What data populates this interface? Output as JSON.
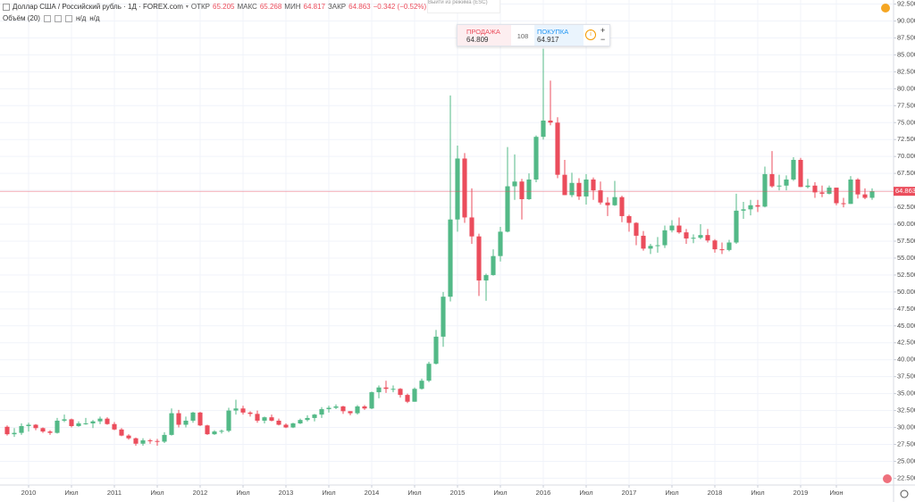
{
  "chart_data": {
    "type": "candlestick",
    "up_color": "#53b987",
    "down_color": "#eb4d5c",
    "x": [
      "2009-10",
      "2009-11",
      "2009-12",
      "2010-01",
      "2010-02",
      "2010-03",
      "2010-04",
      "2010-05",
      "2010-06",
      "2010-07",
      "2010-08",
      "2010-09",
      "2010-10",
      "2010-11",
      "2010-12",
      "2011-01",
      "2011-02",
      "2011-03",
      "2011-04",
      "2011-05",
      "2011-06",
      "2011-07",
      "2011-08",
      "2011-09",
      "2011-10",
      "2011-11",
      "2011-12",
      "2012-01",
      "2012-02",
      "2012-03",
      "2012-04",
      "2012-05",
      "2012-06",
      "2012-07",
      "2012-08",
      "2012-09",
      "2012-10",
      "2012-11",
      "2012-12",
      "2013-01",
      "2013-02",
      "2013-03",
      "2013-04",
      "2013-05",
      "2013-06",
      "2013-07",
      "2013-08",
      "2013-09",
      "2013-10",
      "2013-11",
      "2013-12",
      "2014-01",
      "2014-02",
      "2014-03",
      "2014-04",
      "2014-05",
      "2014-06",
      "2014-07",
      "2014-08",
      "2014-09",
      "2014-10",
      "2014-11",
      "2014-12",
      "2015-01",
      "2015-02",
      "2015-03",
      "2015-04",
      "2015-05",
      "2015-06",
      "2015-07",
      "2015-08",
      "2015-09",
      "2015-10",
      "2015-11",
      "2015-12",
      "2016-01",
      "2016-02",
      "2016-03",
      "2016-04",
      "2016-05",
      "2016-06",
      "2016-07",
      "2016-08",
      "2016-09",
      "2016-10",
      "2016-11",
      "2016-12",
      "2017-01",
      "2017-02",
      "2017-03",
      "2017-04",
      "2017-05",
      "2017-06",
      "2017-07",
      "2017-08",
      "2017-09",
      "2017-10",
      "2017-11",
      "2017-12",
      "2018-01",
      "2018-02",
      "2018-03",
      "2018-04",
      "2018-05",
      "2018-06",
      "2018-07",
      "2018-08",
      "2018-09",
      "2018-10",
      "2018-11",
      "2018-12",
      "2019-01",
      "2019-02",
      "2019-03",
      "2019-04",
      "2019-05",
      "2019-06",
      "2019-07",
      "2019-08",
      "2019-09",
      "2019-10",
      "2019-11"
    ],
    "open": [
      30.1,
      29.0,
      29.2,
      30.2,
      30.4,
      29.9,
      29.4,
      29.2,
      31.0,
      31.2,
      30.2,
      30.6,
      30.6,
      30.9,
      31.3,
      30.5,
      29.7,
      28.8,
      28.4,
      27.6,
      28.1,
      28.0,
      27.9,
      28.9,
      32.1,
      30.4,
      31.0,
      32.2,
      30.3,
      29.0,
      29.4,
      29.5,
      32.5,
      32.8,
      32.2,
      32.0,
      31.0,
      31.5,
      31.0,
      30.4,
      30.0,
      30.6,
      31.1,
      31.4,
      31.9,
      32.7,
      32.9,
      33.1,
      32.4,
      32.1,
      33.1,
      32.8,
      35.2,
      35.9,
      35.7,
      35.7,
      34.8,
      33.8,
      35.7,
      36.9,
      39.4,
      43.4,
      49.3,
      60.7,
      69.7,
      61.0,
      58.2,
      51.7,
      52.5,
      55.3,
      58.9,
      65.6,
      66.3,
      63.7,
      66.6,
      72.9,
      75.3,
      75.0,
      67.3,
      64.3,
      66.1,
      64.1,
      66.6,
      65.0,
      63.2,
      62.8,
      64.0,
      61.2,
      60.2,
      58.3,
      56.4,
      56.8,
      56.9,
      59.1,
      59.8,
      58.8,
      57.9,
      58.0,
      58.4,
      57.6,
      56.3,
      56.2,
      57.3,
      62.0,
      62.2,
      62.8,
      62.6,
      67.4,
      65.6,
      65.7,
      66.6,
      69.5,
      65.5,
      65.7,
      64.7,
      64.5,
      65.4,
      63.1,
      63.0,
      66.6,
      64.4,
      63.9
    ],
    "high": [
      30.3,
      29.9,
      30.6,
      30.7,
      30.5,
      30.0,
      29.6,
      31.4,
      31.9,
      31.3,
      30.9,
      31.4,
      31.1,
      31.6,
      31.5,
      30.8,
      29.9,
      29.0,
      28.5,
      28.4,
      28.3,
      28.3,
      29.3,
      32.8,
      32.6,
      31.6,
      32.3,
      32.3,
      30.4,
      29.6,
      29.7,
      32.9,
      34.1,
      33.2,
      32.4,
      32.5,
      31.6,
      31.9,
      31.3,
      30.6,
      30.7,
      31.3,
      31.8,
      32.0,
      33.0,
      33.2,
      33.4,
      33.2,
      32.4,
      33.3,
      33.3,
      35.3,
      36.2,
      36.9,
      36.2,
      35.8,
      35.0,
      35.9,
      37.2,
      39.7,
      44.4,
      50.0,
      79.0,
      71.6,
      70.5,
      65.3,
      58.6,
      52.7,
      56.3,
      59.6,
      71.4,
      70.3,
      66.7,
      67.5,
      73.1,
      85.9,
      81.2,
      75.8,
      69.5,
      67.6,
      66.8,
      67.4,
      66.9,
      66.3,
      64.0,
      66.4,
      64.2,
      61.4,
      60.3,
      59.0,
      57.1,
      58.1,
      59.8,
      60.6,
      61.0,
      59.3,
      58.5,
      60.0,
      59.3,
      57.8,
      57.3,
      57.7,
      64.5,
      63.3,
      63.6,
      63.6,
      68.5,
      70.8,
      67.3,
      67.2,
      69.9,
      69.8,
      66.7,
      66.2,
      65.7,
      65.7,
      65.4,
      63.9,
      67.1,
      66.8,
      65.3,
      65.3
    ],
    "low": [
      28.8,
      28.6,
      28.9,
      29.4,
      29.6,
      29.2,
      28.9,
      29.1,
      30.8,
      30.0,
      30.1,
      30.4,
      29.9,
      30.5,
      30.4,
      29.6,
      28.7,
      28.2,
      27.3,
      27.3,
      27.6,
      27.3,
      27.7,
      28.8,
      30.0,
      30.0,
      30.7,
      30.2,
      28.9,
      28.9,
      29.1,
      29.3,
      31.9,
      31.9,
      31.6,
      30.7,
      30.6,
      30.9,
      30.3,
      29.9,
      29.9,
      30.5,
      30.9,
      30.9,
      31.4,
      32.2,
      32.7,
      32.0,
      31.8,
      31.9,
      32.6,
      32.7,
      34.3,
      35.1,
      35.2,
      34.4,
      33.6,
      33.8,
      35.6,
      36.7,
      39.3,
      41.9,
      48.6,
      58.9,
      60.2,
      57.1,
      49.4,
      48.7,
      52.4,
      54.5,
      58.8,
      63.6,
      60.7,
      63.6,
      66.2,
      72.5,
      74.6,
      66.8,
      64.3,
      64.0,
      63.6,
      62.9,
      63.6,
      62.9,
      61.2,
      62.7,
      60.3,
      58.9,
      56.9,
      56.1,
      55.6,
      55.8,
      56.5,
      58.8,
      58.6,
      57.1,
      57.2,
      57.8,
      57.3,
      55.8,
      55.6,
      56.0,
      57.1,
      60.8,
      61.3,
      61.8,
      62.5,
      65.4,
      65.0,
      65.0,
      66.4,
      65.5,
      65.3,
      63.9,
      64.0,
      64.4,
      62.8,
      62.5,
      63.0,
      63.8,
      63.7,
      63.6
    ],
    "close": [
      29.0,
      29.2,
      30.2,
      30.4,
      29.9,
      29.4,
      29.2,
      31.0,
      31.2,
      30.2,
      30.6,
      30.6,
      30.9,
      31.3,
      30.5,
      29.7,
      28.8,
      28.4,
      27.6,
      28.1,
      28.0,
      27.9,
      28.9,
      32.1,
      30.4,
      31.0,
      32.2,
      30.3,
      29.0,
      29.4,
      29.5,
      32.5,
      32.8,
      32.2,
      32.0,
      31.0,
      31.5,
      31.0,
      30.4,
      30.0,
      30.6,
      31.1,
      31.4,
      31.9,
      32.7,
      32.9,
      33.1,
      32.4,
      32.1,
      33.1,
      32.8,
      35.2,
      35.9,
      35.7,
      35.7,
      34.8,
      33.8,
      35.7,
      36.9,
      39.4,
      43.4,
      49.3,
      60.7,
      69.7,
      61.0,
      58.2,
      51.7,
      52.5,
      55.3,
      58.9,
      65.6,
      66.3,
      63.7,
      66.6,
      72.9,
      75.3,
      75.0,
      67.3,
      64.3,
      66.1,
      64.1,
      66.6,
      65.0,
      63.2,
      62.8,
      64.0,
      61.2,
      60.2,
      58.3,
      56.4,
      56.8,
      56.9,
      59.1,
      59.8,
      58.8,
      57.9,
      58.0,
      58.4,
      57.6,
      56.3,
      56.2,
      57.3,
      62.0,
      62.2,
      62.8,
      62.6,
      67.4,
      65.6,
      65.7,
      66.6,
      69.5,
      65.5,
      65.7,
      64.7,
      64.5,
      65.4,
      63.1,
      63.0,
      66.6,
      64.4,
      63.9,
      64.863
    ],
    "last_price": 64.863,
    "last_price_color": "#eb4d5c",
    "xlim": [
      "2009-09",
      "2020-02"
    ],
    "ylim": [
      21.5,
      93.1
    ],
    "grid": true,
    "xticks": [
      {
        "value": "2010-01",
        "label": "2010"
      },
      {
        "value": "2010-07",
        "label": "Июл"
      },
      {
        "value": "2011-01",
        "label": "2011"
      },
      {
        "value": "2011-07",
        "label": "Июл"
      },
      {
        "value": "2012-01",
        "label": "2012"
      },
      {
        "value": "2012-07",
        "label": "Июл"
      },
      {
        "value": "2013-01",
        "label": "2013"
      },
      {
        "value": "2013-07",
        "label": "Июл"
      },
      {
        "value": "2014-01",
        "label": "2014"
      },
      {
        "value": "2014-07",
        "label": "Июл"
      },
      {
        "value": "2015-01",
        "label": "2015"
      },
      {
        "value": "2015-07",
        "label": "Июл"
      },
      {
        "value": "2016-01",
        "label": "2016"
      },
      {
        "value": "2016-07",
        "label": "Июл"
      },
      {
        "value": "2017-01",
        "label": "2017"
      },
      {
        "value": "2017-07",
        "label": "Июл"
      },
      {
        "value": "2018-01",
        "label": "2018"
      },
      {
        "value": "2018-07",
        "label": "Июл"
      },
      {
        "value": "2019-01",
        "label": "2019"
      },
      {
        "value": "2019-06",
        "label": "Июн"
      }
    ],
    "yticks": [
      {
        "value": 22.5,
        "label": "22.500"
      },
      {
        "value": 25,
        "label": "25.000"
      },
      {
        "value": 27.5,
        "label": "27.500"
      },
      {
        "value": 30,
        "label": "30.000"
      },
      {
        "value": 32.5,
        "label": "32.500"
      },
      {
        "value": 35,
        "label": "35.000"
      },
      {
        "value": 37.5,
        "label": "37.500"
      },
      {
        "value": 40,
        "label": "40.000"
      },
      {
        "value": 42.5,
        "label": "42.500"
      },
      {
        "value": 45,
        "label": "45.000"
      },
      {
        "value": 47.5,
        "label": "47.500"
      },
      {
        "value": 50,
        "label": "50.000"
      },
      {
        "value": 52.5,
        "label": "52.500"
      },
      {
        "value": 55,
        "label": "55.000"
      },
      {
        "value": 57.5,
        "label": "57.500"
      },
      {
        "value": 60,
        "label": "60.000"
      },
      {
        "value": 62.5,
        "label": "62.500"
      },
      {
        "value": 65,
        "label": "65.000"
      },
      {
        "value": 67.5,
        "label": "67.500"
      },
      {
        "value": 70,
        "label": "70.000"
      },
      {
        "value": 72.5,
        "label": "72.500"
      },
      {
        "value": 75,
        "label": "75.000"
      },
      {
        "value": 77.5,
        "label": "77.500"
      },
      {
        "value": 80,
        "label": "80.000"
      },
      {
        "value": 82.5,
        "label": "82.500"
      },
      {
        "value": 85,
        "label": "85.000"
      },
      {
        "value": 87.5,
        "label": "87.500"
      },
      {
        "value": 90,
        "label": "90.000"
      },
      {
        "value": 92.5,
        "label": "92.500"
      }
    ]
  },
  "header": {
    "symbol": "Доллар США / Российский рубль · 1Д · FOREX.com",
    "open_label": "ОТКР",
    "open": 65.205,
    "high_label": "МАКС",
    "high": 65.268,
    "low_label": "МИН",
    "low": 64.817,
    "close_label": "ЗАКР",
    "close": 64.863,
    "change": "−0.342 (−0.52%)"
  },
  "volume": {
    "label": "Объём (20)",
    "values": [
      "н/д",
      "н/д"
    ]
  },
  "quote_panel": {
    "sell_label": "ПРОДАЖА",
    "sell": 64.809,
    "spread": 108,
    "buy_label": "ПОКУПКА",
    "buy": 64.917
  },
  "exit_hint": "Выйти из режима (ESC)"
}
